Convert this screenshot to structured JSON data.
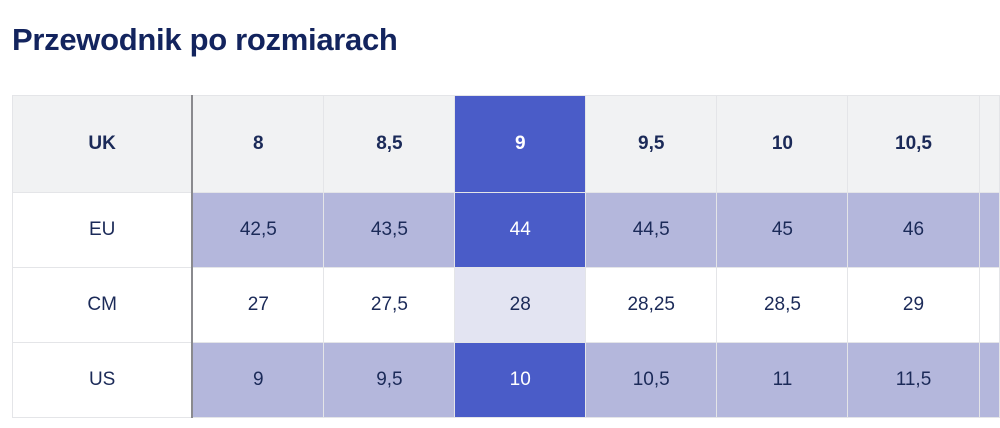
{
  "title": "Przewodnik po rozmiarach",
  "colors": {
    "selected": "#4a5cc8",
    "shade": "#b4b7dc",
    "selected_light": "#e3e4f2",
    "header_bg": "#f1f2f3",
    "text": "#1b2a58"
  },
  "table": {
    "header": {
      "label": "UK",
      "values": [
        "8",
        "8,5",
        "9",
        "9,5",
        "10",
        "10,5"
      ]
    },
    "selected_index": 2,
    "rows": [
      {
        "label": "EU",
        "values": [
          "42,5",
          "43,5",
          "44",
          "44,5",
          "45",
          "46"
        ],
        "shaded": true
      },
      {
        "label": "CM",
        "values": [
          "27",
          "27,5",
          "28",
          "28,25",
          "28,5",
          "29"
        ],
        "shaded": false
      },
      {
        "label": "US",
        "values": [
          "9",
          "9,5",
          "10",
          "10,5",
          "11",
          "11,5"
        ],
        "shaded": true
      }
    ]
  }
}
